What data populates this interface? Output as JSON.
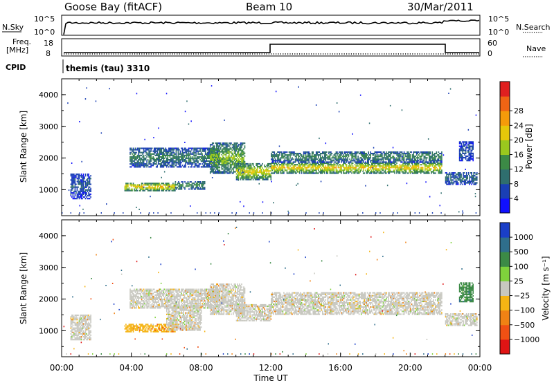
{
  "header": {
    "station": "Goose Bay (fitACF)",
    "beam": "Beam 10",
    "date": "30/Mar/2011"
  },
  "noise_panel": {
    "left_label": "N.Sky",
    "right_label": "N.Search",
    "left_ticks": [
      "10^5",
      "10^0"
    ],
    "right_ticks": [
      "10^5",
      "10^0"
    ]
  },
  "freq_panel": {
    "left_label_1": "Freq.",
    "left_label_2": "[MHz]",
    "right_label": "Nave",
    "left_ticks": [
      "18",
      "8"
    ],
    "right_ticks": [
      "60",
      "0"
    ]
  },
  "cpid_panel": {
    "label": "CPID",
    "mode": "themis (tau) 3310"
  },
  "colors": {
    "gray": "#c8c8c0",
    "axis": "#000000"
  },
  "chart_data": [
    {
      "type": "heatmap",
      "panel": "power",
      "ylabel": "Slant Range [km]",
      "xlabel": "",
      "y_ticks": [
        "1000",
        "2000",
        "3000",
        "4000"
      ],
      "ylim": [
        180,
        4500
      ],
      "xlim": [
        0,
        24
      ],
      "colorbar": {
        "label": "Power [dB]",
        "ticks": [
          "4",
          "8",
          "12",
          "16",
          "20",
          "24",
          "28"
        ],
        "colors": [
          "#1010ff",
          "#1a3fb5",
          "#2f6e6e",
          "#3c8a46",
          "#9ac81e",
          "#e6c80a",
          "#f59b0a",
          "#f06414",
          "#e02020"
        ],
        "range": [
          0,
          32
        ]
      },
      "regions": [
        {
          "t0": 0.5,
          "t1": 1.7,
          "r0": 700,
          "r1": 1500,
          "level": 6
        },
        {
          "t0": 3.6,
          "t1": 6.5,
          "r0": 950,
          "r1": 1200,
          "level": 22
        },
        {
          "t0": 6.5,
          "t1": 8.2,
          "r0": 1000,
          "r1": 1250,
          "level": 12
        },
        {
          "t0": 3.9,
          "t1": 9.0,
          "r0": 1700,
          "r1": 2300,
          "level": 10
        },
        {
          "t0": 8.5,
          "t1": 10.5,
          "r0": 1500,
          "r1": 2450,
          "level": 16
        },
        {
          "t0": 10.0,
          "t1": 12.0,
          "r0": 1300,
          "r1": 1800,
          "level": 20
        },
        {
          "t0": 12.0,
          "t1": 21.8,
          "r0": 1500,
          "r1": 1850,
          "level": 21
        },
        {
          "t0": 12.0,
          "t1": 21.8,
          "r0": 1850,
          "r1": 2200,
          "level": 11
        },
        {
          "t0": 22.0,
          "t1": 23.8,
          "r0": 1150,
          "r1": 1550,
          "level": 8
        },
        {
          "t0": 22.8,
          "t1": 23.6,
          "r0": 1900,
          "r1": 2500,
          "level": 6
        }
      ]
    },
    {
      "type": "heatmap",
      "panel": "velocity",
      "ylabel": "Slant Range [km]",
      "xlabel": "Time UT",
      "x_ticks": [
        "00:00",
        "04:00",
        "08:00",
        "12:00",
        "16:00",
        "20:00",
        "00:00"
      ],
      "y_ticks": [
        "1000",
        "2000",
        "3000",
        "4000"
      ],
      "ylim": [
        180,
        4500
      ],
      "xlim": [
        0,
        24
      ],
      "colorbar": {
        "label": "Velocity [m s⁻¹]",
        "ticks": [
          "1000",
          "500",
          "100",
          "25",
          "−25",
          "−100",
          "−500",
          "−1000"
        ],
        "colors": [
          "#1a3fc8",
          "#2f6e8c",
          "#3c8a46",
          "#7fd23c",
          "#c8c8c0",
          "#f5b414",
          "#f08214",
          "#f05014",
          "#e01414"
        ]
      },
      "regions": [
        {
          "t0": 0.5,
          "t1": 1.7,
          "r0": 700,
          "r1": 1500,
          "level": 4
        },
        {
          "t0": 3.6,
          "t1": 6.5,
          "r0": 950,
          "r1": 1200,
          "level": 5
        },
        {
          "t0": 3.9,
          "t1": 9.0,
          "r0": 1700,
          "r1": 2300,
          "level": 4
        },
        {
          "t0": 6.0,
          "t1": 8.0,
          "r0": 1000,
          "r1": 1800,
          "level": 4
        },
        {
          "t0": 8.5,
          "t1": 10.5,
          "r0": 1500,
          "r1": 2450,
          "level": 4
        },
        {
          "t0": 10.0,
          "t1": 12.0,
          "r0": 1300,
          "r1": 1800,
          "level": 4
        },
        {
          "t0": 12.0,
          "t1": 21.8,
          "r0": 1500,
          "r1": 2200,
          "level": 4
        },
        {
          "t0": 22.0,
          "t1": 23.8,
          "r0": 1150,
          "r1": 1550,
          "level": 4
        },
        {
          "t0": 22.8,
          "t1": 23.6,
          "r0": 1900,
          "r1": 2500,
          "level": 2
        }
      ]
    }
  ]
}
